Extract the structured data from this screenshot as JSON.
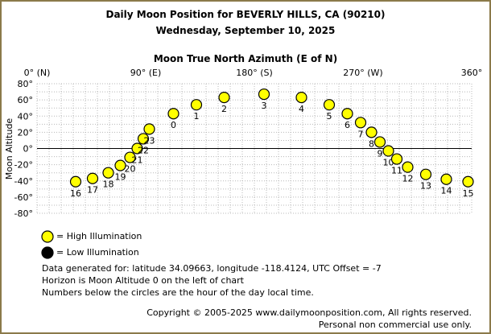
{
  "header": {
    "title": "Daily Moon Position for BEVERLY HILLS, CA (90210)",
    "date": "Wednesday, September 10, 2025",
    "x_axis_title": "Moon True North Azimuth (E of N)",
    "y_axis_title": "Moon Altitude"
  },
  "legend": {
    "high_label": "= High Illumination",
    "low_label": "= Low Illumination",
    "high_color": "#ffff00",
    "low_color": "#000000"
  },
  "info": {
    "line1": "Data generated for: latitude 34.09663, longitude -118.4124, UTC Offset = -7",
    "line2": "Horizon is Moon Altitude 0 on the left of chart",
    "line3": "Numbers below the circles are the hour of the day local time."
  },
  "footer": {
    "copyright": "Copyright © 2005-2025 www.dailymoonposition.com, All rights reserved.",
    "personal": "Personal non commercial use only."
  },
  "chart_data": {
    "type": "scatter",
    "title": "Daily Moon Position for BEVERLY HILLS, CA (90210)",
    "subtitle": "Wednesday, September 10, 2025",
    "xlabel": "Moon True North Azimuth (E of N)",
    "ylabel": "Moon Altitude",
    "xlim": [
      0,
      360
    ],
    "ylim": [
      -80,
      80
    ],
    "x_ticks": [
      0,
      90,
      180,
      270,
      360
    ],
    "x_tick_labels": [
      "0° (N)",
      "90° (E)",
      "180° (S)",
      "270° (W)",
      "360°"
    ],
    "y_ticks": [
      80,
      60,
      40,
      20,
      0,
      -20,
      -40,
      -60,
      -80
    ],
    "y_tick_labels": [
      "80°",
      "60°",
      "40°",
      "20°",
      "0°",
      "-20°",
      "-40°",
      "-60°",
      "-80°"
    ],
    "grid": true,
    "points": [
      {
        "hour": "16",
        "az": 32,
        "alt": -41
      },
      {
        "hour": "17",
        "az": 46,
        "alt": -37
      },
      {
        "hour": "18",
        "az": 59,
        "alt": -30
      },
      {
        "hour": "19",
        "az": 69,
        "alt": -21
      },
      {
        "hour": "20",
        "az": 77,
        "alt": -11
      },
      {
        "hour": "21",
        "az": 83,
        "alt": 0
      },
      {
        "hour": "22",
        "az": 88,
        "alt": 12
      },
      {
        "hour": "23",
        "az": 93,
        "alt": 24
      },
      {
        "hour": "0",
        "az": 113,
        "alt": 43
      },
      {
        "hour": "1",
        "az": 132,
        "alt": 54
      },
      {
        "hour": "2",
        "az": 155,
        "alt": 63
      },
      {
        "hour": "3",
        "az": 188,
        "alt": 67
      },
      {
        "hour": "4",
        "az": 219,
        "alt": 63
      },
      {
        "hour": "5",
        "az": 242,
        "alt": 54
      },
      {
        "hour": "6",
        "az": 257,
        "alt": 43
      },
      {
        "hour": "7",
        "az": 268,
        "alt": 32
      },
      {
        "hour": "8",
        "az": 277,
        "alt": 20
      },
      {
        "hour": "9",
        "az": 284,
        "alt": 8
      },
      {
        "hour": "10",
        "az": 291,
        "alt": -3
      },
      {
        "hour": "11",
        "az": 298,
        "alt": -13
      },
      {
        "hour": "12",
        "az": 307,
        "alt": -23
      },
      {
        "hour": "13",
        "az": 322,
        "alt": -32
      },
      {
        "hour": "14",
        "az": 339,
        "alt": -38
      },
      {
        "hour": "15",
        "az": 357,
        "alt": -41
      }
    ],
    "illumination": "high"
  }
}
